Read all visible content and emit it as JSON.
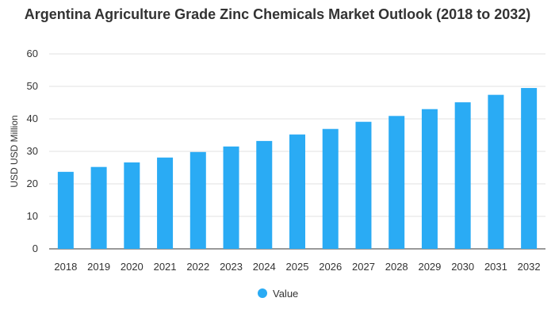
{
  "chart_data": {
    "type": "bar",
    "title": "Argentina Agriculture Grade Zinc Chemicals Market Outlook (2018 to 2032)",
    "xlabel": "",
    "ylabel": "USD USD Million",
    "categories": [
      "2018",
      "2019",
      "2020",
      "2021",
      "2022",
      "2023",
      "2024",
      "2025",
      "2026",
      "2027",
      "2028",
      "2029",
      "2030",
      "2031",
      "2032"
    ],
    "series": [
      {
        "name": "Value",
        "values": [
          23.7,
          25.2,
          26.6,
          28.1,
          29.8,
          31.5,
          33.2,
          35.2,
          36.9,
          39.1,
          40.9,
          43.0,
          45.1,
          47.4,
          49.5
        ]
      }
    ],
    "ylim": [
      0,
      60
    ],
    "yticks": [
      "0",
      "10",
      "20",
      "30",
      "40",
      "50",
      "60"
    ],
    "grid": true,
    "legend_position": "bottom",
    "colors": {
      "bar": "#2aabf4",
      "grid": "#e0e0e0",
      "axis": "#333333"
    }
  }
}
